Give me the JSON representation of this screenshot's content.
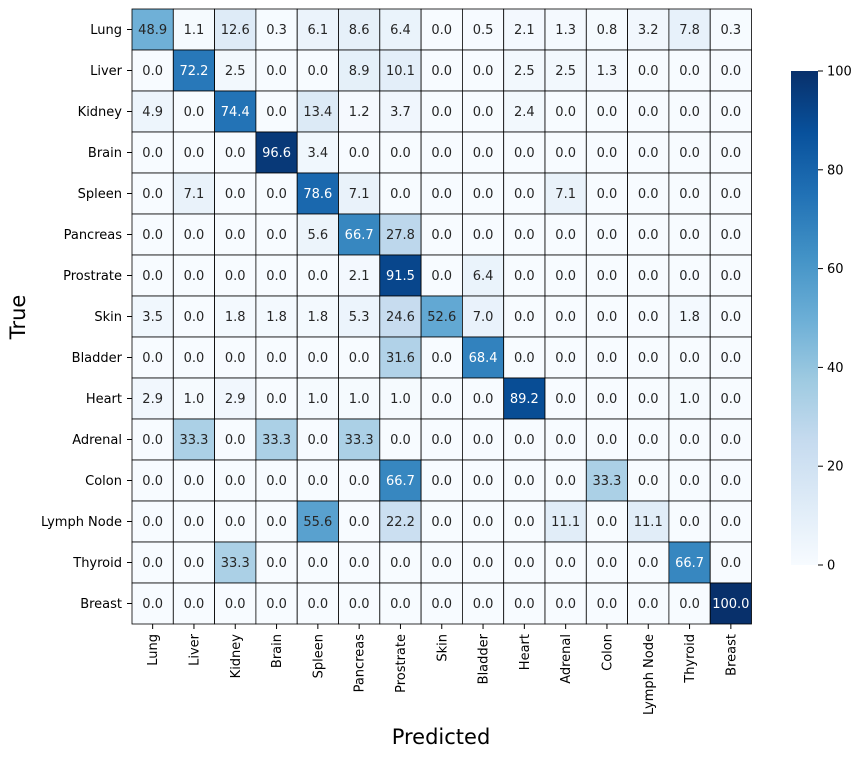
{
  "chart_data": {
    "type": "heatmap",
    "title": "",
    "xlabel": "Predicted",
    "ylabel": "True",
    "rows": [
      "Lung",
      "Liver",
      "Kidney",
      "Brain",
      "Spleen",
      "Pancreas",
      "Prostrate",
      "Skin",
      "Bladder",
      "Heart",
      "Adrenal",
      "Colon",
      "Lymph Node",
      "Thyroid",
      "Breast"
    ],
    "cols": [
      "Lung",
      "Liver",
      "Kidney",
      "Brain",
      "Spleen",
      "Pancreas",
      "Prostrate",
      "Skin",
      "Bladder",
      "Heart",
      "Adrenal",
      "Colon",
      "Lymph Node",
      "Thyroid",
      "Breast"
    ],
    "values": [
      [
        48.9,
        1.1,
        12.6,
        0.3,
        6.1,
        8.6,
        6.4,
        0.0,
        0.5,
        2.1,
        1.3,
        0.8,
        3.2,
        7.8,
        0.3
      ],
      [
        0.0,
        72.2,
        2.5,
        0.0,
        0.0,
        8.9,
        10.1,
        0.0,
        0.0,
        2.5,
        2.5,
        1.3,
        0.0,
        0.0,
        0.0
      ],
      [
        4.9,
        0.0,
        74.4,
        0.0,
        13.4,
        1.2,
        3.7,
        0.0,
        0.0,
        2.4,
        0.0,
        0.0,
        0.0,
        0.0,
        0.0
      ],
      [
        0.0,
        0.0,
        0.0,
        96.6,
        3.4,
        0.0,
        0.0,
        0.0,
        0.0,
        0.0,
        0.0,
        0.0,
        0.0,
        0.0,
        0.0
      ],
      [
        0.0,
        7.1,
        0.0,
        0.0,
        78.6,
        7.1,
        0.0,
        0.0,
        0.0,
        0.0,
        7.1,
        0.0,
        0.0,
        0.0,
        0.0
      ],
      [
        0.0,
        0.0,
        0.0,
        0.0,
        5.6,
        66.7,
        27.8,
        0.0,
        0.0,
        0.0,
        0.0,
        0.0,
        0.0,
        0.0,
        0.0
      ],
      [
        0.0,
        0.0,
        0.0,
        0.0,
        0.0,
        2.1,
        91.5,
        0.0,
        6.4,
        0.0,
        0.0,
        0.0,
        0.0,
        0.0,
        0.0
      ],
      [
        3.5,
        0.0,
        1.8,
        1.8,
        1.8,
        5.3,
        24.6,
        52.6,
        7.0,
        0.0,
        0.0,
        0.0,
        0.0,
        1.8,
        0.0
      ],
      [
        0.0,
        0.0,
        0.0,
        0.0,
        0.0,
        0.0,
        31.6,
        0.0,
        68.4,
        0.0,
        0.0,
        0.0,
        0.0,
        0.0,
        0.0
      ],
      [
        2.9,
        1.0,
        2.9,
        0.0,
        1.0,
        1.0,
        1.0,
        0.0,
        0.0,
        89.2,
        0.0,
        0.0,
        0.0,
        1.0,
        0.0
      ],
      [
        0.0,
        33.3,
        0.0,
        33.3,
        0.0,
        33.3,
        0.0,
        0.0,
        0.0,
        0.0,
        0.0,
        0.0,
        0.0,
        0.0,
        0.0
      ],
      [
        0.0,
        0.0,
        0.0,
        0.0,
        0.0,
        0.0,
        66.7,
        0.0,
        0.0,
        0.0,
        0.0,
        33.3,
        0.0,
        0.0,
        0.0
      ],
      [
        0.0,
        0.0,
        0.0,
        0.0,
        55.6,
        0.0,
        22.2,
        0.0,
        0.0,
        0.0,
        11.1,
        0.0,
        11.1,
        0.0,
        0.0
      ],
      [
        0.0,
        0.0,
        33.3,
        0.0,
        0.0,
        0.0,
        0.0,
        0.0,
        0.0,
        0.0,
        0.0,
        0.0,
        0.0,
        66.7,
        0.0
      ],
      [
        0.0,
        0.0,
        0.0,
        0.0,
        0.0,
        0.0,
        0.0,
        0.0,
        0.0,
        0.0,
        0.0,
        0.0,
        0.0,
        0.0,
        100.0
      ]
    ],
    "colorbar": {
      "range": [
        0,
        100
      ],
      "ticks": [
        "0",
        "20",
        "40",
        "60",
        "80",
        "100"
      ],
      "colormap": "Blues",
      "colors": [
        "#f7fbff",
        "#deebf7",
        "#c6dbef",
        "#9ecae1",
        "#6baed6",
        "#4292c6",
        "#2171b5",
        "#08519c",
        "#08306b"
      ]
    },
    "grid": true,
    "legend": "none"
  }
}
